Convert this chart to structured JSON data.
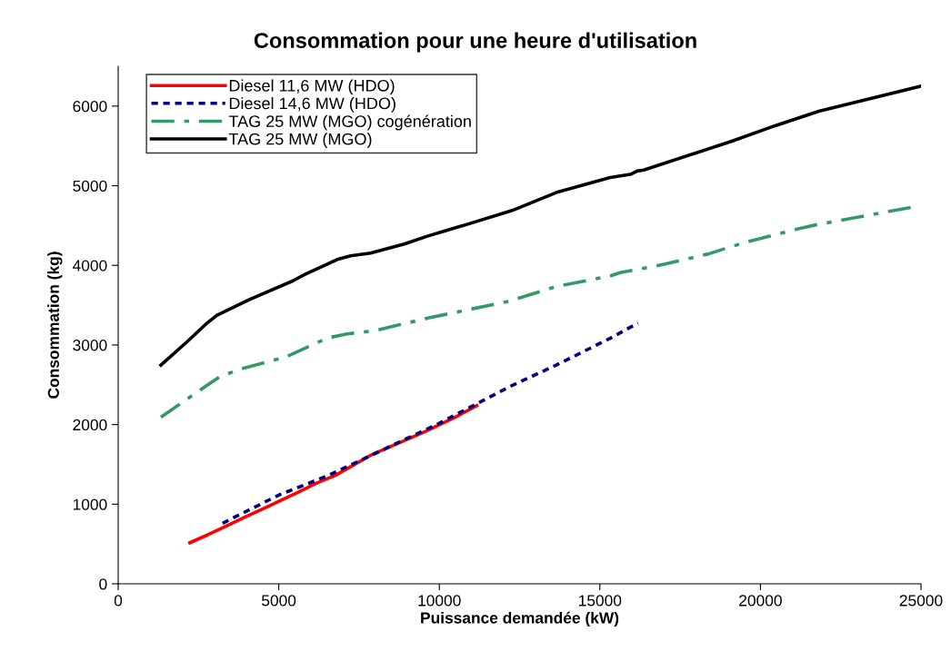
{
  "chart_data": {
    "type": "line",
    "title": "Consommation pour une heure d'utilisation",
    "xlabel": "Puissance demandée (kW)",
    "ylabel": "Consommation (kg)",
    "xlim": [
      0,
      25000
    ],
    "xticks": [
      0,
      5000,
      10000,
      15000,
      20000,
      25000
    ],
    "ylim": [
      0,
      6500
    ],
    "yticks": [
      0,
      1000,
      2000,
      3000,
      4000,
      5000,
      6000
    ],
    "grid": false,
    "legend": "top left",
    "marker": "none",
    "series": [
      {
        "name": "Diesel 11,6 MW (HDO)",
        "color": "#ff0000",
        "line_style": "solid",
        "x": [
          2230,
          2780,
          3880,
          4510,
          5560,
          6190,
          6760,
          7860,
          9540,
          10490,
          11170
        ],
        "values": [
          516,
          613,
          825,
          942,
          1141,
          1267,
          1361,
          1614,
          1909,
          2092,
          2239
        ]
      },
      {
        "name": "Diesel 14,6 MW (HDO)",
        "color": "#000080",
        "line_style": "dotted",
        "x": [
          3250,
          5030,
          6500,
          8390,
          9960,
          11170,
          12170,
          13640,
          15320,
          16190
        ],
        "values": [
          761,
          1120,
          1353,
          1711,
          2008,
          2261,
          2472,
          2747,
          3084,
          3275
        ]
      },
      {
        "name": "TAG 25 MW (MGO) cogénération",
        "color": "#339966",
        "line_style": "dashdot",
        "x": [
          1330,
          2730,
          3150,
          3770,
          5240,
          6500,
          7130,
          7970,
          9650,
          12170,
          13640,
          15320,
          15630,
          16580,
          17000,
          18360,
          19520,
          21300,
          21770,
          24760
        ],
        "values": [
          2092,
          2484,
          2598,
          2692,
          2852,
          3085,
          3139,
          3178,
          3338,
          3549,
          3734,
          3866,
          3908,
          3980,
          4014,
          4141,
          4289,
          4470,
          4512,
          4733
        ]
      },
      {
        "name": "TAG 25 MW (MGO)",
        "color": "#000000",
        "line_style": "solid",
        "x": [
          1330,
          2150,
          2730,
          3070,
          4090,
          5430,
          5820,
          6820,
          7240,
          7860,
          8910,
          9650,
          10910,
          12270,
          13640,
          15320,
          15950,
          16160,
          16370,
          19090,
          20460,
          21820,
          25000
        ],
        "values": [
          2747,
          3042,
          3262,
          3372,
          3570,
          3803,
          3887,
          4073,
          4119,
          4153,
          4267,
          4369,
          4520,
          4689,
          4914,
          5103,
          5142,
          5184,
          5197,
          5556,
          5754,
          5936,
          6250
        ]
      }
    ]
  }
}
